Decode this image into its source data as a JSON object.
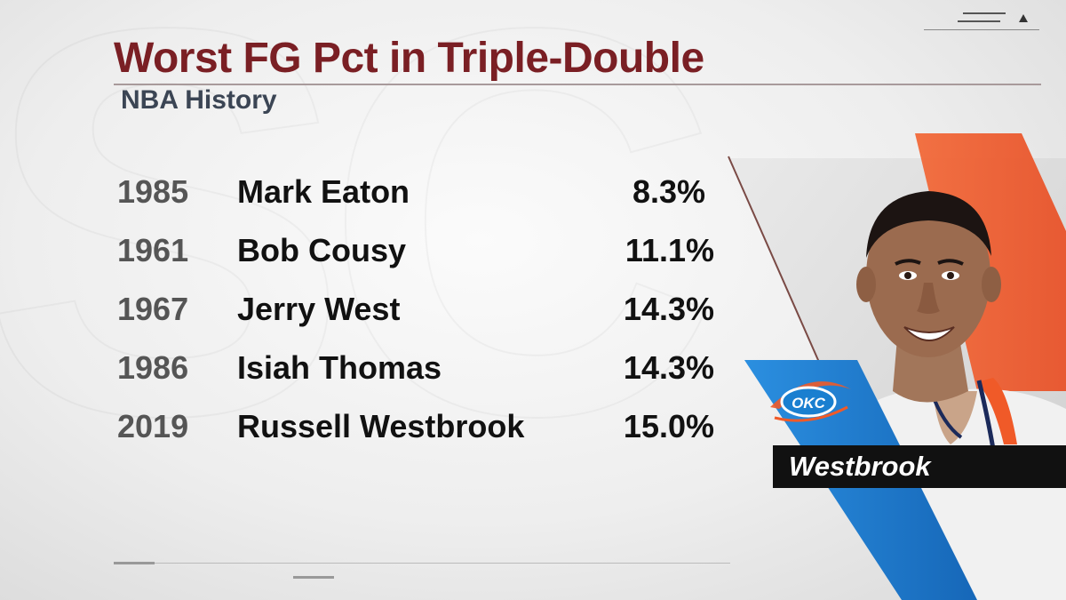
{
  "title": "Worst FG Pct in Triple-Double",
  "subtitle": "NBA History",
  "rows": [
    {
      "year": "1985",
      "name": "Mark Eaton",
      "pct": "8.3%"
    },
    {
      "year": "1961",
      "name": "Bob Cousy",
      "pct": "11.1%"
    },
    {
      "year": "1967",
      "name": "Jerry West",
      "pct": "14.3%"
    },
    {
      "year": "1986",
      "name": "Isiah Thomas",
      "pct": "14.3%"
    },
    {
      "year": "2019",
      "name": "Russell Westbrook",
      "pct": "15.0%"
    }
  ],
  "player_tag": "Westbrook",
  "team_logo": "OKC",
  "colors": {
    "title": "#7a1f24",
    "subtitle": "#3b4554",
    "accent_blue": "#1a7fd0",
    "accent_orange": "#f05a28",
    "name_bar": "#111111"
  },
  "icons": {
    "header_decoration": "menu-lines-icon",
    "header_arrow": "triangle-up-icon"
  }
}
